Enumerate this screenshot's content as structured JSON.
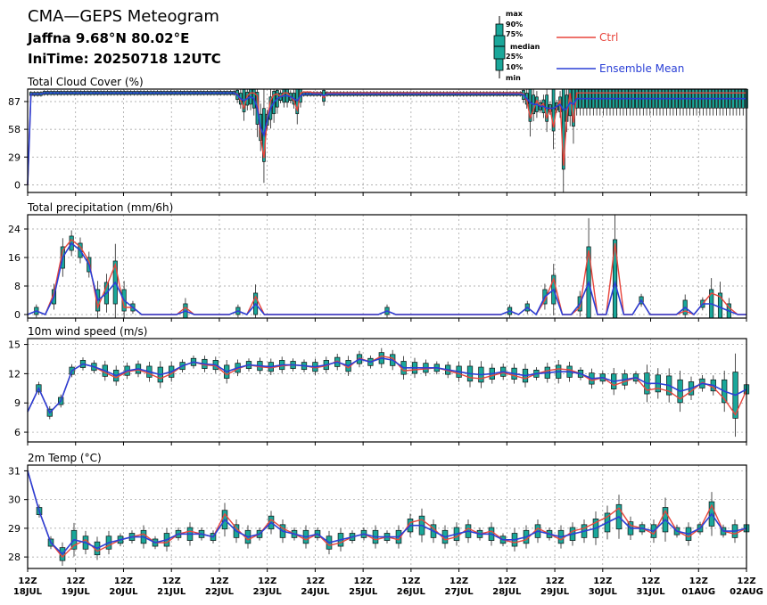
{
  "header": {
    "title": "CMA—GEPS Meteogram",
    "location": "Jaffna 9.68°N 80.02°E",
    "init_time": "IniTime: 20250718 12UTC"
  },
  "box_legend": {
    "labels": [
      "max",
      "90%",
      "75%",
      "median",
      "25%",
      "10%",
      "min"
    ]
  },
  "legend": {
    "ctrl": "Ctrl",
    "mean": "Ensemble Mean",
    "ctrl_color": "#e8453c",
    "mean_color": "#2a3fd6",
    "box_color": "#1aa79a"
  },
  "chart_data": {
    "type": "line",
    "x": {
      "start": "2025-07-18 12Z",
      "step_hours": 6,
      "tick_labels": [
        [
          "12Z",
          "18JUL"
        ],
        [
          "12Z",
          "19JUL"
        ],
        [
          "12Z",
          "20JUL"
        ],
        [
          "12Z",
          "21JUL"
        ],
        [
          "12Z",
          "22JUL"
        ],
        [
          "12Z",
          "23JUL"
        ],
        [
          "12Z",
          "24JUL"
        ],
        [
          "12Z",
          "25JUL"
        ],
        [
          "12Z",
          "26JUL"
        ],
        [
          "12Z",
          "27JUL"
        ],
        [
          "12Z",
          "28JUL"
        ],
        [
          "12Z",
          "29JUL"
        ],
        [
          "12Z",
          "30JUL"
        ],
        [
          "12Z",
          "31JUL"
        ],
        [
          "12Z",
          "01AUG"
        ],
        [
          "12Z",
          "02AUG"
        ]
      ]
    },
    "panels": [
      {
        "title": "Total Cloud Cover (%)",
        "ylim": [
          -8,
          100
        ],
        "yticks": [
          0,
          29,
          58,
          87
        ],
        "ctrl": [
          0,
          95,
          95,
          95,
          95,
          96,
          96,
          96,
          96,
          96,
          96,
          96,
          96,
          96,
          96,
          96,
          96,
          96,
          96,
          96,
          96,
          96,
          96,
          96,
          96,
          96,
          96,
          96,
          96,
          96,
          96,
          96,
          96,
          96,
          96,
          96,
          96,
          96,
          96,
          96,
          96,
          96,
          96,
          96,
          96,
          96,
          96,
          96,
          96,
          96,
          96,
          96,
          96,
          96,
          96,
          96,
          96,
          96,
          96,
          96,
          96,
          96,
          96,
          95,
          88,
          80,
          93,
          96,
          96,
          93,
          50,
          28,
          70,
          88,
          94,
          95,
          92,
          96,
          96,
          92,
          88,
          78,
          96,
          97,
          97,
          97,
          96,
          96,
          96,
          91,
          96,
          96,
          96,
          96,
          96,
          96,
          96,
          96,
          96,
          96,
          96,
          96,
          96,
          96,
          96,
          96,
          96,
          96,
          96,
          96,
          96,
          96,
          96,
          96,
          96,
          96,
          96,
          96,
          96,
          96,
          96,
          96,
          96,
          96,
          96,
          96,
          96,
          96,
          96,
          96,
          96,
          96,
          96,
          96,
          96,
          96,
          96,
          96,
          96,
          96,
          96,
          96,
          96,
          96,
          96,
          96,
          96,
          96,
          96,
          95,
          88,
          70,
          78,
          88,
          82,
          85,
          70,
          80,
          60,
          82,
          88,
          20,
          70,
          96,
          65,
          96,
          96,
          96,
          96,
          96,
          96,
          96,
          96,
          96,
          96,
          96,
          96,
          96,
          96,
          96,
          96,
          96,
          96,
          96,
          96,
          96,
          96,
          96,
          96,
          96,
          96,
          96,
          96,
          96,
          96,
          96,
          96,
          96,
          96,
          96,
          96,
          96,
          96,
          96,
          96,
          96,
          96,
          96,
          96,
          96,
          96,
          96,
          96,
          96,
          96,
          96,
          96
        ],
        "mean": [
          0,
          95,
          95,
          95,
          95,
          96,
          96,
          96,
          96,
          96,
          96,
          96,
          96,
          96,
          96,
          96,
          96,
          96,
          96,
          96,
          96,
          96,
          96,
          96,
          96,
          96,
          96,
          96,
          96,
          96,
          96,
          96,
          96,
          96,
          96,
          96,
          96,
          96,
          96,
          96,
          96,
          96,
          96,
          96,
          96,
          96,
          96,
          96,
          96,
          96,
          96,
          96,
          96,
          96,
          96,
          96,
          96,
          96,
          96,
          96,
          96,
          96,
          96,
          94,
          90,
          88,
          90,
          92,
          90,
          80,
          60,
          52,
          68,
          80,
          86,
          90,
          92,
          93,
          93,
          92,
          90,
          88,
          93,
          95,
          95,
          95,
          95,
          95,
          95,
          93,
          95,
          95,
          95,
          95,
          95,
          95,
          95,
          95,
          95,
          95,
          95,
          95,
          95,
          95,
          95,
          95,
          95,
          95,
          95,
          95,
          95,
          95,
          95,
          95,
          95,
          95,
          95,
          95,
          95,
          95,
          95,
          95,
          95,
          95,
          95,
          95,
          95,
          95,
          95,
          95,
          95,
          95,
          95,
          95,
          95,
          95,
          95,
          95,
          95,
          95,
          95,
          95,
          95,
          95,
          95,
          95,
          95,
          95,
          95,
          94,
          90,
          86,
          84,
          84,
          82,
          82,
          80,
          80,
          80,
          82,
          84,
          78,
          80,
          86,
          84,
          90,
          90,
          90,
          90,
          90,
          90,
          90,
          90,
          90,
          90,
          90,
          90,
          90,
          90,
          90,
          90,
          90,
          90,
          90,
          90,
          90,
          90,
          90,
          90,
          90,
          90,
          90,
          90,
          90,
          90,
          90,
          90,
          90,
          90,
          90,
          90,
          90,
          90,
          90,
          90,
          90,
          90,
          90,
          90,
          90,
          90,
          90,
          90,
          90,
          90,
          90,
          90
        ]
      },
      {
        "title": "Total precipitation (mm/6h)",
        "ylim": [
          -1,
          28
        ],
        "yticks": [
          0,
          8,
          16,
          24
        ],
        "ctrl": [
          0,
          1,
          0,
          6,
          18,
          21,
          19,
          15,
          2,
          8,
          14,
          2,
          2,
          0,
          0,
          0,
          0,
          0,
          2,
          0,
          0,
          0,
          0,
          0,
          1,
          0,
          5,
          0,
          0,
          0,
          0,
          0,
          0,
          0,
          0,
          0,
          0,
          0,
          0,
          0,
          0,
          1,
          0,
          0,
          0,
          0,
          0,
          0,
          0,
          0,
          0,
          0,
          0,
          0,
          0,
          1,
          0,
          2,
          0,
          4,
          10,
          0,
          0,
          2,
          18,
          0,
          0,
          20,
          0,
          0,
          4,
          0,
          0,
          0,
          0,
          1,
          0,
          3,
          6,
          5,
          2,
          0,
          0
        ],
        "mean": [
          0,
          1,
          0,
          5,
          16,
          20,
          18,
          14,
          4,
          6,
          9,
          4,
          2,
          0,
          0,
          0,
          0,
          0,
          1,
          0,
          0,
          0,
          0,
          0,
          1,
          0,
          3,
          0,
          0,
          0,
          0,
          0,
          0,
          0,
          0,
          0,
          0,
          0,
          0,
          0,
          0,
          1,
          0,
          0,
          0,
          0,
          0,
          0,
          0,
          0,
          0,
          0,
          0,
          0,
          0,
          1,
          0,
          2,
          0,
          5,
          7,
          0,
          0,
          3,
          9,
          0,
          0,
          9,
          0,
          0,
          4,
          0,
          0,
          0,
          0,
          2,
          0,
          3,
          3,
          2,
          1,
          0,
          0
        ]
      },
      {
        "title": "10m wind speed (m/s)",
        "ylim": [
          5,
          15.6
        ],
        "yticks": [
          6,
          9,
          12,
          15
        ],
        "ctrl": [
          8.1,
          10.5,
          8.0,
          9.2,
          12.3,
          13.0,
          12.7,
          12.1,
          11.6,
          12.2,
          12.4,
          12.0,
          11.5,
          12.0,
          12.8,
          13.2,
          12.9,
          12.8,
          11.9,
          12.5,
          12.9,
          12.7,
          12.6,
          12.8,
          12.9,
          12.8,
          12.6,
          12.8,
          13.3,
          12.6,
          13.6,
          13.2,
          13.8,
          13.6,
          12.3,
          12.4,
          12.5,
          12.6,
          12.3,
          12.0,
          11.6,
          11.5,
          11.8,
          12.1,
          11.8,
          11.5,
          12.0,
          12.3,
          12.5,
          12.4,
          12.0,
          11.3,
          11.6,
          10.8,
          11.2,
          11.6,
          10.3,
          10.5,
          10.2,
          9.4,
          10.2,
          11.1,
          10.6,
          9.4,
          7.8,
          10.3
        ],
        "mean": [
          8.1,
          10.5,
          8.0,
          9.2,
          12.3,
          13.0,
          12.7,
          12.3,
          11.8,
          12.3,
          12.5,
          12.2,
          11.9,
          12.2,
          12.8,
          13.2,
          13.0,
          12.9,
          12.2,
          12.6,
          12.9,
          12.8,
          12.7,
          12.9,
          12.9,
          12.8,
          12.7,
          12.9,
          13.2,
          12.8,
          13.5,
          13.2,
          13.6,
          13.4,
          12.6,
          12.6,
          12.6,
          12.6,
          12.4,
          12.2,
          12.0,
          11.9,
          12.0,
          12.2,
          12.0,
          11.8,
          12.0,
          12.1,
          12.2,
          12.2,
          12.0,
          11.5,
          11.6,
          11.2,
          11.4,
          11.6,
          11.0,
          11.0,
          10.8,
          10.2,
          10.5,
          11.0,
          10.8,
          10.2,
          9.8,
          10.4
        ]
      },
      {
        "title": "2m Temp (°C)",
        "ylim": [
          27.6,
          31.2
        ],
        "yticks": [
          28,
          29,
          30,
          31
        ],
        "ctrl": [
          31.0,
          29.6,
          28.5,
          28.0,
          28.4,
          28.6,
          28.2,
          28.4,
          28.6,
          28.7,
          28.8,
          28.5,
          28.5,
          28.8,
          28.9,
          28.8,
          28.7,
          29.5,
          29.0,
          28.6,
          28.8,
          29.3,
          29.0,
          28.8,
          28.6,
          28.8,
          28.4,
          28.5,
          28.7,
          28.8,
          28.6,
          28.7,
          28.6,
          29.2,
          29.3,
          29.0,
          28.6,
          28.7,
          29.0,
          28.8,
          28.9,
          28.6,
          28.5,
          28.6,
          29.0,
          28.8,
          28.6,
          28.9,
          29.0,
          29.2,
          29.4,
          29.7,
          29.1,
          29.0,
          28.8,
          29.6,
          28.9,
          28.7,
          29.0,
          29.8,
          28.9,
          28.8,
          29.0
        ],
        "mean": [
          31.0,
          29.6,
          28.5,
          28.1,
          28.6,
          28.5,
          28.3,
          28.5,
          28.6,
          28.7,
          28.7,
          28.5,
          28.6,
          28.8,
          28.8,
          28.8,
          28.7,
          29.3,
          28.9,
          28.7,
          28.8,
          29.2,
          28.9,
          28.8,
          28.7,
          28.8,
          28.5,
          28.6,
          28.7,
          28.8,
          28.7,
          28.7,
          28.7,
          29.1,
          29.1,
          28.9,
          28.7,
          28.8,
          28.9,
          28.8,
          28.8,
          28.6,
          28.6,
          28.7,
          28.9,
          28.8,
          28.7,
          28.8,
          28.9,
          29.0,
          29.2,
          29.4,
          29.0,
          29.0,
          28.9,
          29.3,
          28.9,
          28.8,
          29.0,
          29.5,
          28.9,
          28.9,
          29.0
        ]
      }
    ]
  }
}
